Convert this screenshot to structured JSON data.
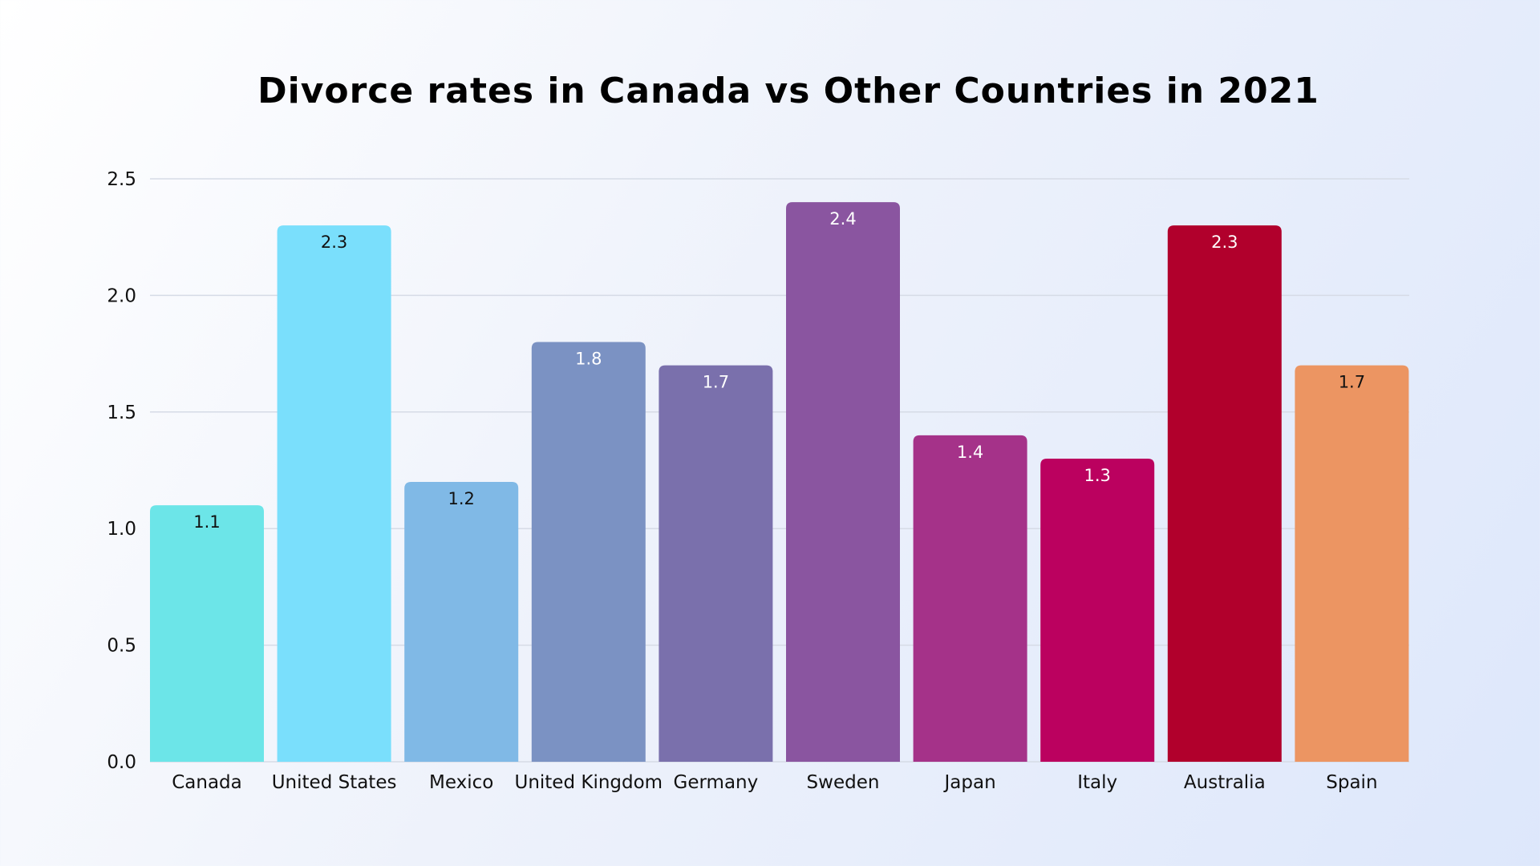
{
  "chart_data": {
    "type": "bar",
    "title": "Divorce rates in Canada vs Other Countries in 2021",
    "xlabel": "",
    "ylabel": "",
    "ylim": [
      0,
      2.5
    ],
    "yticks": [
      "0.0",
      "0.5",
      "1.0",
      "1.5",
      "2.0",
      "2.5"
    ],
    "grid": true,
    "categories": [
      "Canada",
      "United States",
      "Mexico",
      "United Kingdom",
      "Germany",
      "Sweden",
      "Japan",
      "Italy",
      "Australia",
      "Spain"
    ],
    "values": [
      1.1,
      2.3,
      1.2,
      1.8,
      1.7,
      2.4,
      1.4,
      1.3,
      2.3,
      1.7
    ],
    "data_labels": [
      "1.1",
      "2.3",
      "1.2",
      "1.8",
      "1.7",
      "2.4",
      "1.4",
      "1.3",
      "2.3",
      "1.7"
    ],
    "colors": [
      "#6ce5e8",
      "#7adffc",
      "#80b9e6",
      "#7b92c3",
      "#7a70ac",
      "#8a55a0",
      "#a53289",
      "#bb015f",
      "#b1002c",
      "#ec9562"
    ],
    "label_colors": [
      "#111111",
      "#111111",
      "#111111",
      "#ffffff",
      "#ffffff",
      "#ffffff",
      "#ffffff",
      "#ffffff",
      "#ffffff",
      "#111111"
    ]
  }
}
